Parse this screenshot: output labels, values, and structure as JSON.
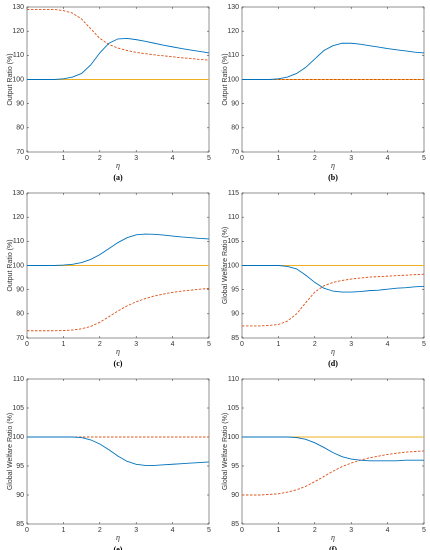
{
  "chart_data": [
    {
      "type": "line",
      "caption": "(a)",
      "xlabel": "η",
      "ylabel": "Output Ratio (%)",
      "x": [
        0,
        0.25,
        0.5,
        0.75,
        1,
        1.25,
        1.5,
        1.75,
        2,
        2.25,
        2.5,
        2.75,
        3,
        3.25,
        3.5,
        3.75,
        4,
        4.25,
        4.5,
        4.75,
        5
      ],
      "xlim": [
        0,
        5
      ],
      "xticks": [
        0,
        1,
        2,
        3,
        4,
        5
      ],
      "ylim": [
        70,
        130
      ],
      "yticks": [
        70,
        80,
        90,
        100,
        110,
        120,
        130
      ],
      "series": [
        {
          "color": "#edb120",
          "line_style": "solid",
          "values": [
            100,
            100,
            100,
            100,
            100,
            100,
            100,
            100,
            100,
            100,
            100,
            100,
            100,
            100,
            100,
            100,
            100,
            100,
            100,
            100,
            100
          ]
        },
        {
          "color": "#d95319",
          "line_style": "dashed",
          "values": [
            129,
            129,
            129,
            129,
            128.5,
            127.5,
            125,
            121,
            117,
            114.5,
            113,
            112,
            111.2,
            110.7,
            110.2,
            109.8,
            109.4,
            109,
            108.7,
            108.3,
            108
          ]
        },
        {
          "color": "#0072bd",
          "line_style": "solid",
          "values": [
            100,
            100,
            100,
            100,
            100.3,
            101,
            102.5,
            106,
            111,
            115,
            116.8,
            117,
            116.5,
            115.8,
            115,
            114.2,
            113.5,
            112.8,
            112.2,
            111.6,
            111
          ]
        }
      ]
    },
    {
      "type": "line",
      "caption": "(b)",
      "xlabel": "η",
      "ylabel": "Output Ratio (%)",
      "x": [
        0,
        0.25,
        0.5,
        0.75,
        1,
        1.25,
        1.5,
        1.75,
        2,
        2.25,
        2.5,
        2.75,
        3,
        3.25,
        3.5,
        3.75,
        4,
        4.25,
        4.5,
        4.75,
        5
      ],
      "xlim": [
        0,
        5
      ],
      "xticks": [
        0,
        1,
        2,
        3,
        4,
        5
      ],
      "ylim": [
        70,
        130
      ],
      "yticks": [
        70,
        80,
        90,
        100,
        110,
        120,
        130
      ],
      "series": [
        {
          "color": "#edb120",
          "line_style": "solid",
          "values": [
            100,
            100,
            100,
            100,
            100,
            100,
            100,
            100,
            100,
            100,
            100,
            100,
            100,
            100,
            100,
            100,
            100,
            100,
            100,
            100,
            100
          ]
        },
        {
          "color": "#d95319",
          "line_style": "dashed",
          "values": [
            100,
            100,
            100,
            100,
            100,
            100,
            100,
            100,
            100,
            100,
            100,
            100,
            100,
            100,
            100,
            100,
            100,
            100,
            100,
            100,
            100
          ]
        },
        {
          "color": "#0072bd",
          "line_style": "solid",
          "values": [
            100,
            100,
            100,
            100,
            100.3,
            101,
            102.5,
            105,
            108.5,
            112,
            114,
            115,
            115,
            114.6,
            114,
            113.4,
            112.8,
            112.3,
            111.8,
            111.3,
            111
          ]
        }
      ]
    },
    {
      "type": "line",
      "caption": "(c)",
      "xlabel": "η",
      "ylabel": "Output Ratio (%)",
      "x": [
        0,
        0.25,
        0.5,
        0.75,
        1,
        1.25,
        1.5,
        1.75,
        2,
        2.25,
        2.5,
        2.75,
        3,
        3.25,
        3.5,
        3.75,
        4,
        4.25,
        4.5,
        4.75,
        5
      ],
      "xlim": [
        0,
        5
      ],
      "xticks": [
        0,
        1,
        2,
        3,
        4,
        5
      ],
      "ylim": [
        70,
        130
      ],
      "yticks": [
        70,
        80,
        90,
        100,
        110,
        120,
        130
      ],
      "series": [
        {
          "color": "#edb120",
          "line_style": "solid",
          "values": [
            100,
            100,
            100,
            100,
            100,
            100,
            100,
            100,
            100,
            100,
            100,
            100,
            100,
            100,
            100,
            100,
            100,
            100,
            100,
            100,
            100
          ]
        },
        {
          "color": "#d95319",
          "line_style": "dashed",
          "values": [
            73,
            73,
            73,
            73,
            73.1,
            73.3,
            73.8,
            74.8,
            76.5,
            78.8,
            81.2,
            83.3,
            85,
            86.3,
            87.4,
            88.2,
            88.9,
            89.4,
            89.8,
            90.2,
            90.5
          ]
        },
        {
          "color": "#0072bd",
          "line_style": "solid",
          "values": [
            100,
            100,
            100,
            100,
            100.2,
            100.5,
            101.2,
            102.5,
            104.5,
            107,
            109.5,
            111.5,
            112.7,
            113,
            112.9,
            112.6,
            112.2,
            111.8,
            111.5,
            111.2,
            111
          ]
        }
      ]
    },
    {
      "type": "line",
      "caption": "(d)",
      "xlabel": "η",
      "ylabel": "Global Welfare Ratio (%)",
      "x": [
        0,
        0.25,
        0.5,
        0.75,
        1,
        1.25,
        1.5,
        1.75,
        2,
        2.25,
        2.5,
        2.75,
        3,
        3.25,
        3.5,
        3.75,
        4,
        4.25,
        4.5,
        4.75,
        5
      ],
      "xlim": [
        0,
        5
      ],
      "xticks": [
        0,
        1,
        2,
        3,
        4,
        5
      ],
      "ylim": [
        85,
        115
      ],
      "yticks": [
        85,
        90,
        95,
        100,
        105,
        110,
        115
      ],
      "series": [
        {
          "color": "#edb120",
          "line_style": "solid",
          "values": [
            100,
            100,
            100,
            100,
            100,
            100,
            100,
            100,
            100,
            100,
            100,
            100,
            100,
            100,
            100,
            100,
            100,
            100,
            100,
            100,
            100
          ]
        },
        {
          "color": "#d95319",
          "line_style": "dashed",
          "values": [
            87.5,
            87.5,
            87.5,
            87.6,
            87.8,
            88.5,
            90,
            92.3,
            94.5,
            95.8,
            96.5,
            96.9,
            97.2,
            97.4,
            97.6,
            97.7,
            97.8,
            97.9,
            98,
            98.1,
            98.2
          ]
        },
        {
          "color": "#0072bd",
          "line_style": "solid",
          "values": [
            100,
            100,
            100,
            100,
            100,
            99.8,
            99.3,
            98,
            96.5,
            95.3,
            94.7,
            94.5,
            94.5,
            94.6,
            94.8,
            94.9,
            95.1,
            95.3,
            95.4,
            95.6,
            95.7
          ]
        }
      ]
    },
    {
      "type": "line",
      "caption": "(e)",
      "xlabel": "η",
      "ylabel": "Global Welfare Ratio (%)",
      "x": [
        0,
        0.25,
        0.5,
        0.75,
        1,
        1.25,
        1.5,
        1.75,
        2,
        2.25,
        2.5,
        2.75,
        3,
        3.25,
        3.5,
        3.75,
        4,
        4.25,
        4.5,
        4.75,
        5
      ],
      "xlim": [
        0,
        5
      ],
      "xticks": [
        0,
        1,
        2,
        3,
        4,
        5
      ],
      "ylim": [
        85,
        110
      ],
      "yticks": [
        85,
        90,
        95,
        100,
        105,
        110
      ],
      "series": [
        {
          "color": "#d95319",
          "line_style": "dashed",
          "values": [
            100,
            100,
            100,
            100,
            100,
            100,
            100,
            100,
            100,
            100,
            100,
            100,
            100,
            100,
            100,
            100,
            100,
            100,
            100,
            100,
            100
          ]
        },
        {
          "color": "#0072bd",
          "line_style": "solid",
          "values": [
            100,
            100,
            100,
            100,
            100,
            100,
            99.9,
            99.5,
            98.8,
            97.8,
            96.7,
            95.8,
            95.3,
            95.1,
            95.1,
            95.2,
            95.3,
            95.4,
            95.5,
            95.6,
            95.7
          ]
        }
      ]
    },
    {
      "type": "line",
      "caption": "(f)",
      "xlabel": "η",
      "ylabel": "Global Welfare Ratio (%)",
      "x": [
        0,
        0.25,
        0.5,
        0.75,
        1,
        1.25,
        1.5,
        1.75,
        2,
        2.25,
        2.5,
        2.75,
        3,
        3.25,
        3.5,
        3.75,
        4,
        4.25,
        4.5,
        4.75,
        5
      ],
      "xlim": [
        0,
        5
      ],
      "xticks": [
        0,
        1,
        2,
        3,
        4,
        5
      ],
      "ylim": [
        85,
        110
      ],
      "yticks": [
        85,
        90,
        95,
        100,
        105,
        110
      ],
      "series": [
        {
          "color": "#edb120",
          "line_style": "solid",
          "values": [
            100,
            100,
            100,
            100,
            100,
            100,
            100,
            100,
            100,
            100,
            100,
            100,
            100,
            100,
            100,
            100,
            100,
            100,
            100,
            100,
            100
          ]
        },
        {
          "color": "#d95319",
          "line_style": "dashed",
          "values": [
            90,
            90,
            90,
            90.1,
            90.2,
            90.5,
            90.9,
            91.5,
            92.3,
            93.2,
            94.1,
            94.9,
            95.5,
            96,
            96.4,
            96.7,
            97,
            97.2,
            97.4,
            97.5,
            97.6
          ]
        },
        {
          "color": "#0072bd",
          "line_style": "solid",
          "values": [
            100,
            100,
            100,
            100,
            100,
            100,
            99.9,
            99.6,
            99,
            98.2,
            97.3,
            96.6,
            96.2,
            96,
            95.9,
            95.9,
            95.9,
            95.9,
            96,
            96,
            96
          ]
        }
      ]
    }
  ]
}
